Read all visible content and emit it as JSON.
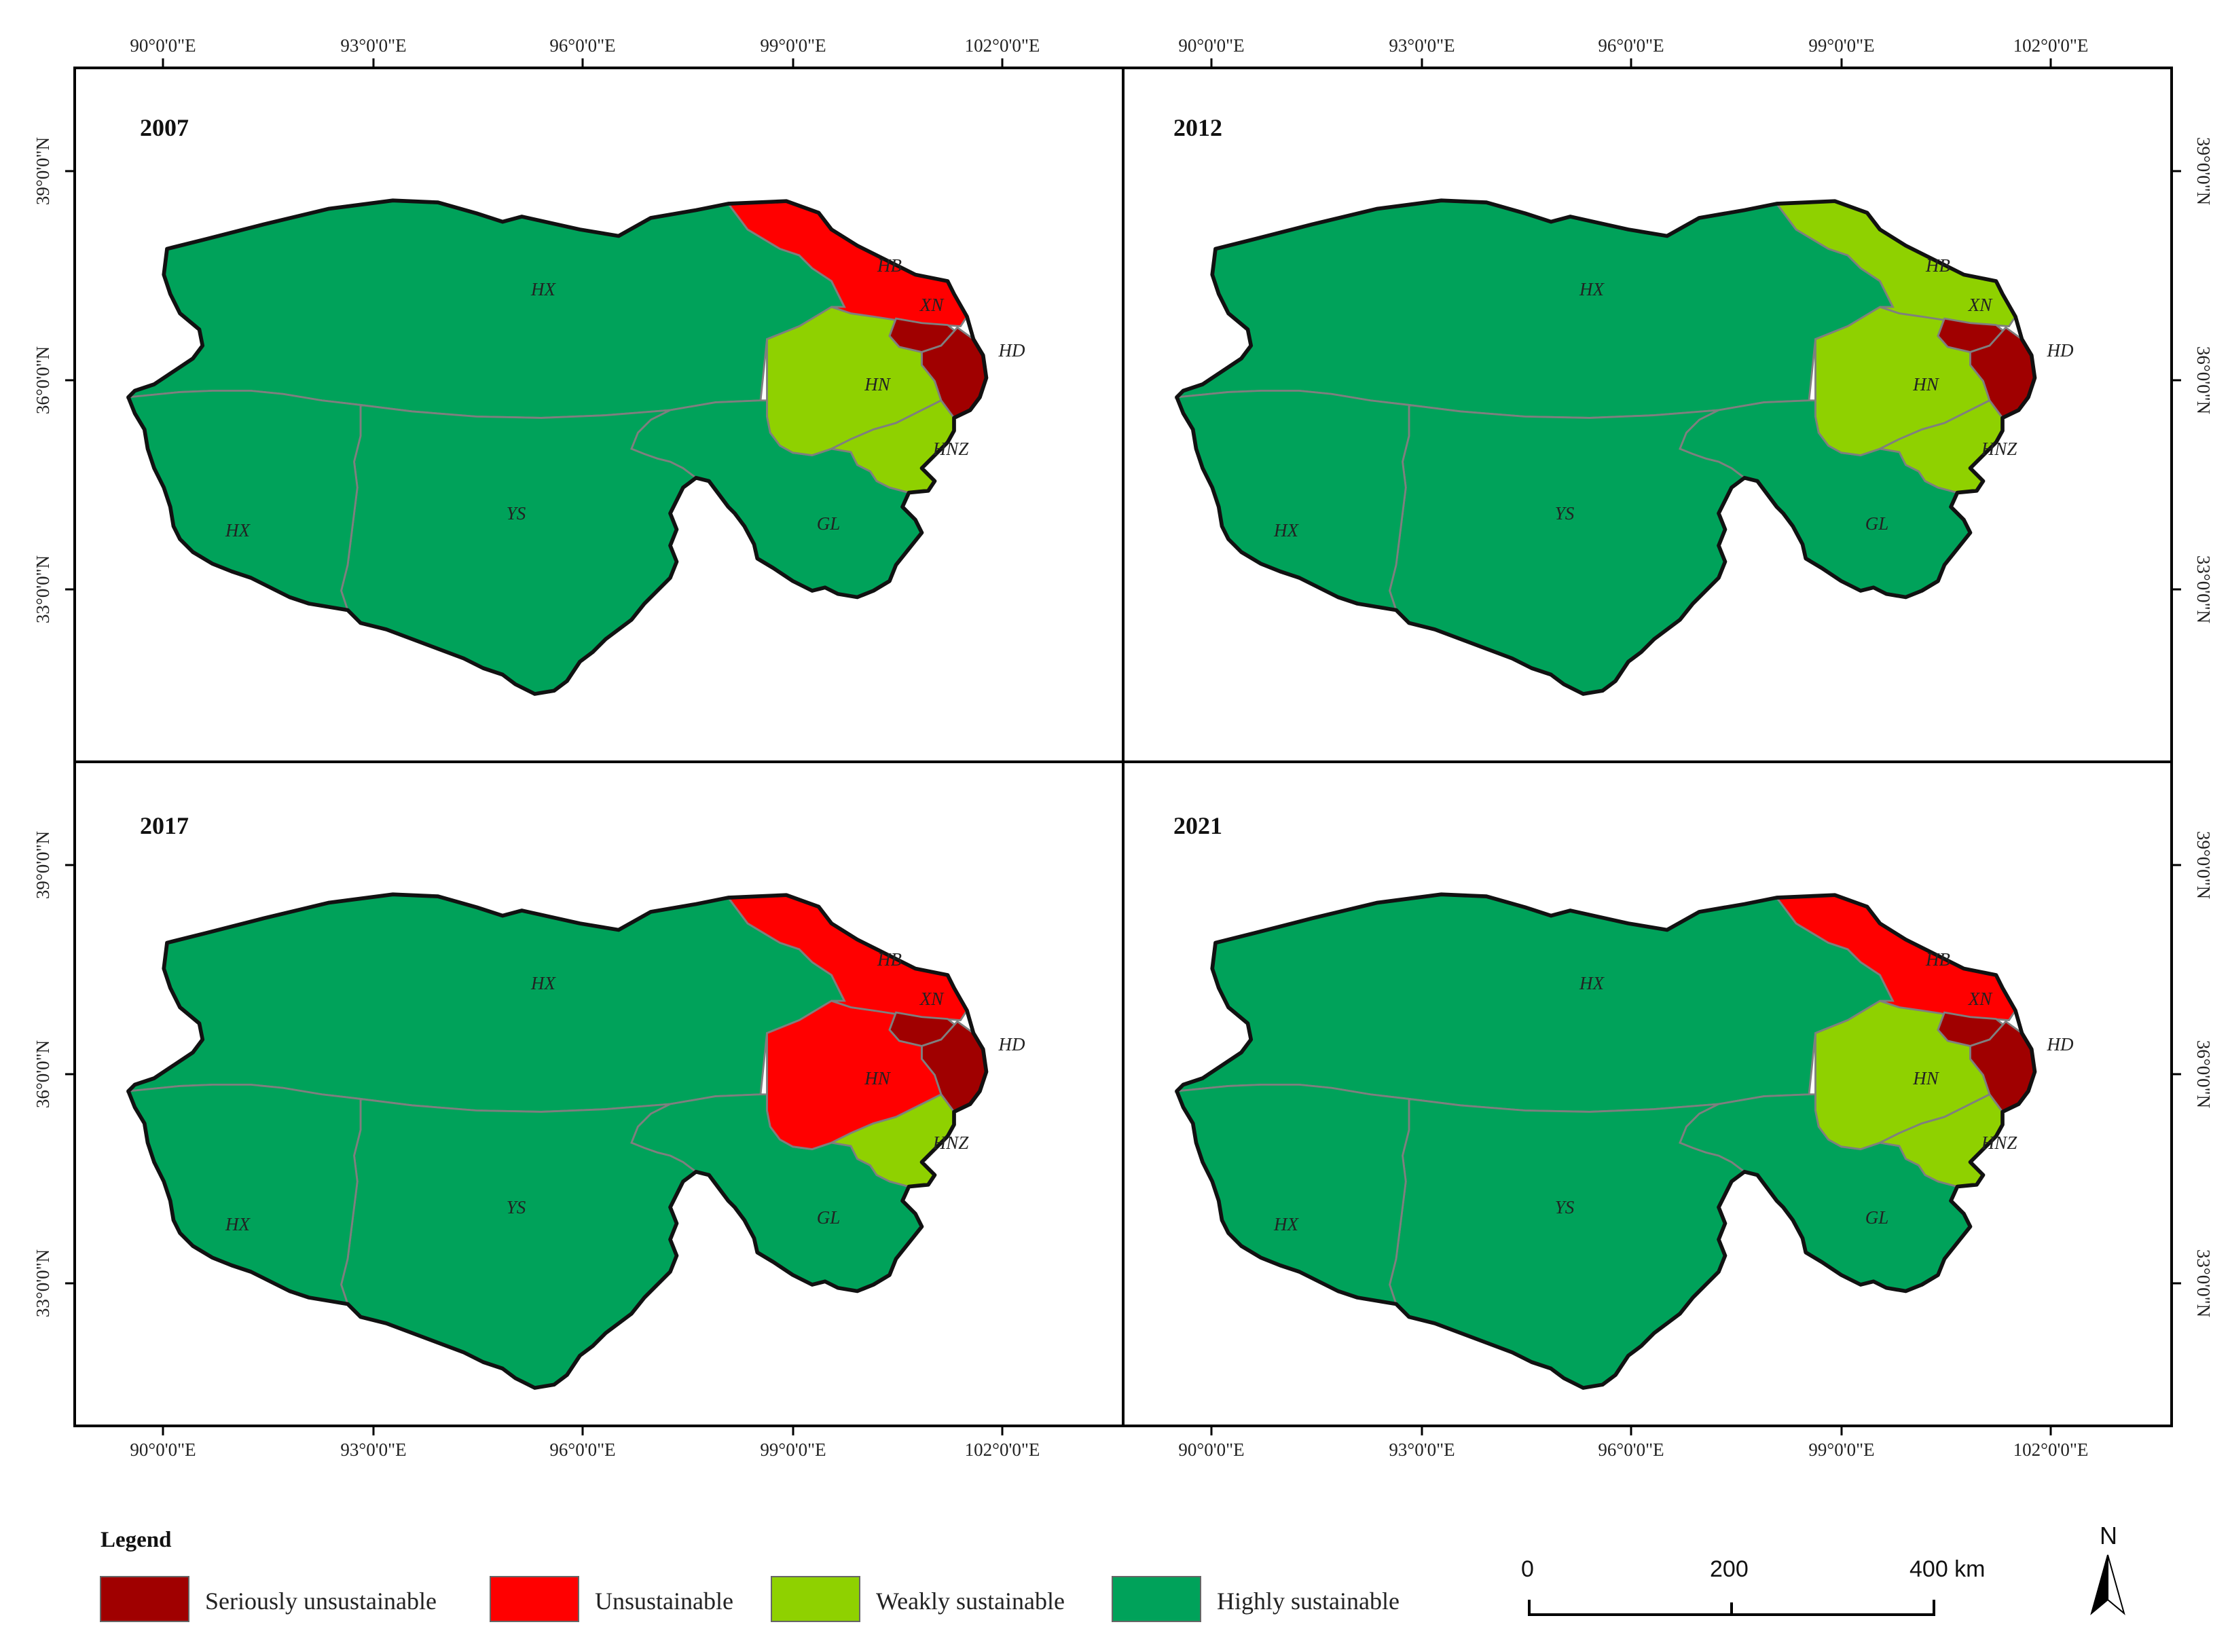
{
  "legend": {
    "title": "Legend",
    "classes": [
      {
        "key": "su",
        "label": "Seriously unsustainable",
        "color": "#A00000"
      },
      {
        "key": "un",
        "label": "Unsustainable",
        "color": "#FF0000"
      },
      {
        "key": "ws",
        "label": "Weakly sustainable",
        "color": "#8FD100"
      },
      {
        "key": "hs",
        "label": "Highly sustainable",
        "color": "#00A25A"
      }
    ]
  },
  "axes": {
    "top_ticks": [
      "90°0'0\"E",
      "93°0'0\"E",
      "96°0'0\"E",
      "99°0'0\"E",
      "102°0'0\"E"
    ],
    "bottom_ticks": [
      "90°0'0\"E",
      "93°0'0\"E",
      "96°0'0\"E",
      "99°0'0\"E",
      "102°0'0\"E"
    ],
    "left_ticks": [
      "39°0'0\"N",
      "36°0'0\"N",
      "33°0'0\"N"
    ],
    "right_ticks": [
      "39°0'0\"N",
      "36°0'0\"N",
      "33°0'0\"N"
    ]
  },
  "region_labels": {
    "HX_north": "HX",
    "HX_south": "HX",
    "YS": "YS",
    "GL": "GL",
    "HB": "HB",
    "XN": "XN",
    "HD": "HD",
    "HN": "HN",
    "HNZ": "HNZ"
  },
  "panels": [
    {
      "year": "2007",
      "classes": {
        "HB": "un",
        "XN": "su",
        "HD": "su",
        "HN": "ws",
        "HNZ": "ws",
        "HX": "hs",
        "YS": "hs",
        "GL": "hs"
      }
    },
    {
      "year": "2012",
      "classes": {
        "HB": "ws",
        "XN": "su",
        "HD": "su",
        "HN": "ws",
        "HNZ": "ws",
        "HX": "hs",
        "YS": "hs",
        "GL": "hs"
      }
    },
    {
      "year": "2017",
      "classes": {
        "HB": "un",
        "XN": "su",
        "HD": "su",
        "HN": "un",
        "HNZ": "ws",
        "HX": "hs",
        "YS": "hs",
        "GL": "hs"
      }
    },
    {
      "year": "2021",
      "classes": {
        "HB": "un",
        "XN": "su",
        "HD": "su",
        "HN": "ws",
        "HNZ": "ws",
        "HX": "hs",
        "YS": "hs",
        "GL": "hs"
      }
    }
  ],
  "scale_bar": {
    "labels": [
      "0",
      "200",
      "400 km"
    ]
  },
  "north_arrow": {
    "label": "N",
    "icon": "north-arrow-icon"
  }
}
